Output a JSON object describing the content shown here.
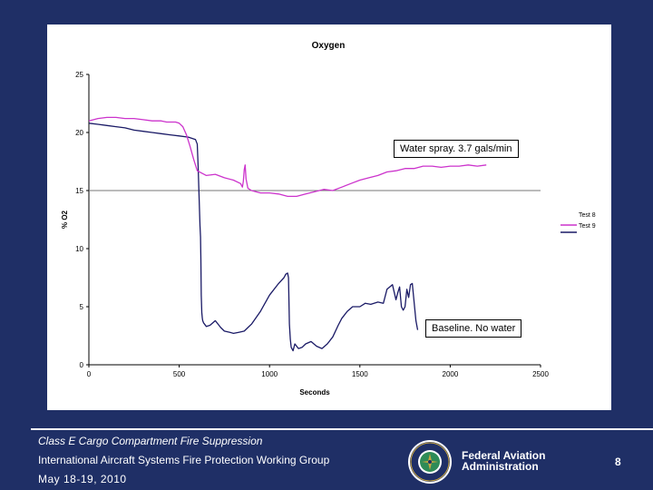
{
  "chart_data": {
    "type": "line",
    "title": "Oxygen",
    "xlabel": "Seconds",
    "ylabel": "% O2",
    "xlim": [
      0,
      2500
    ],
    "ylim": [
      0,
      25
    ],
    "xticks": [
      0,
      500,
      1000,
      1500,
      2000,
      2500
    ],
    "yticks": [
      0,
      5,
      10,
      15,
      20,
      25
    ],
    "reference_line_y": 15,
    "legend_position": "right",
    "series": [
      {
        "name": "Test 8",
        "color": "#1a1a66",
        "x": [
          0,
          50,
          100,
          150,
          200,
          250,
          300,
          350,
          400,
          450,
          500,
          550,
          590,
          600,
          605,
          610,
          615,
          618,
          620,
          622,
          625,
          628,
          630,
          635,
          640,
          650,
          670,
          700,
          730,
          750,
          780,
          800,
          830,
          860,
          880,
          900,
          950,
          1000,
          1050,
          1080,
          1090,
          1100,
          1105,
          1110,
          1115,
          1120,
          1130,
          1140,
          1160,
          1180,
          1200,
          1230,
          1260,
          1290,
          1320,
          1350,
          1380,
          1400,
          1430,
          1460,
          1500,
          1530,
          1560,
          1600,
          1630,
          1650,
          1680,
          1700,
          1710,
          1720,
          1730,
          1740,
          1750,
          1760,
          1770,
          1780,
          1790,
          1800,
          1810,
          1820
        ],
        "y": [
          20.8,
          20.7,
          20.6,
          20.5,
          20.4,
          20.2,
          20.1,
          20.0,
          19.9,
          19.8,
          19.7,
          19.6,
          19.4,
          19.0,
          17.0,
          14.5,
          12.0,
          11.0,
          9.0,
          6.0,
          4.5,
          4.0,
          3.8,
          3.6,
          3.5,
          3.3,
          3.4,
          3.8,
          3.2,
          2.9,
          2.8,
          2.7,
          2.8,
          2.9,
          3.2,
          3.5,
          4.6,
          6.0,
          7.0,
          7.5,
          7.8,
          7.9,
          7.5,
          3.5,
          2.2,
          1.5,
          1.2,
          1.8,
          1.4,
          1.5,
          1.8,
          2.0,
          1.6,
          1.4,
          1.8,
          2.4,
          3.4,
          4.0,
          4.6,
          5.0,
          5.0,
          5.3,
          5.2,
          5.4,
          5.3,
          6.5,
          6.9,
          5.6,
          6.2,
          6.7,
          5.0,
          4.7,
          5.0,
          6.5,
          5.8,
          6.9,
          7.0,
          5.4,
          3.8,
          3.0
        ]
      },
      {
        "name": "Test 9",
        "color": "#cc33cc",
        "x": [
          0,
          50,
          100,
          150,
          200,
          250,
          300,
          350,
          400,
          430,
          460,
          480,
          500,
          520,
          540,
          560,
          580,
          600,
          650,
          700,
          750,
          800,
          840,
          850,
          855,
          860,
          865,
          870,
          880,
          900,
          950,
          1000,
          1050,
          1100,
          1150,
          1200,
          1250,
          1300,
          1350,
          1400,
          1450,
          1500,
          1550,
          1600,
          1650,
          1700,
          1750,
          1800,
          1850,
          1900,
          1950,
          2000,
          2050,
          2100,
          2150,
          2200
        ],
        "y": [
          21.0,
          21.2,
          21.3,
          21.3,
          21.2,
          21.2,
          21.1,
          21.0,
          21.0,
          20.9,
          20.9,
          20.9,
          20.8,
          20.5,
          19.8,
          18.8,
          17.7,
          16.7,
          16.3,
          16.4,
          16.1,
          15.9,
          15.6,
          15.3,
          15.8,
          16.8,
          17.2,
          16.0,
          15.2,
          15.0,
          14.8,
          14.8,
          14.7,
          14.5,
          14.5,
          14.7,
          14.9,
          15.1,
          15.0,
          15.3,
          15.6,
          15.9,
          16.1,
          16.3,
          16.6,
          16.7,
          16.9,
          16.9,
          17.1,
          17.1,
          17.0,
          17.1,
          17.1,
          17.2,
          17.1,
          17.2
        ]
      }
    ],
    "annotations": [
      {
        "text": "Water spray. 3.7 gals/min"
      },
      {
        "text": "Baseline. No water"
      }
    ]
  },
  "footer": {
    "title": "Class E Cargo Compartment Fire Suppression",
    "group": "International Aircraft Systems Fire Protection Working Group",
    "date": "May 18-19, 2010",
    "org_line1": "Federal Aviation",
    "org_line2": "Administration",
    "page_number": "8"
  },
  "seal": {
    "name": "faa-seal"
  },
  "colors": {
    "background": "#1f2f66",
    "test8": "#1a1a66",
    "test9": "#cc33cc"
  }
}
